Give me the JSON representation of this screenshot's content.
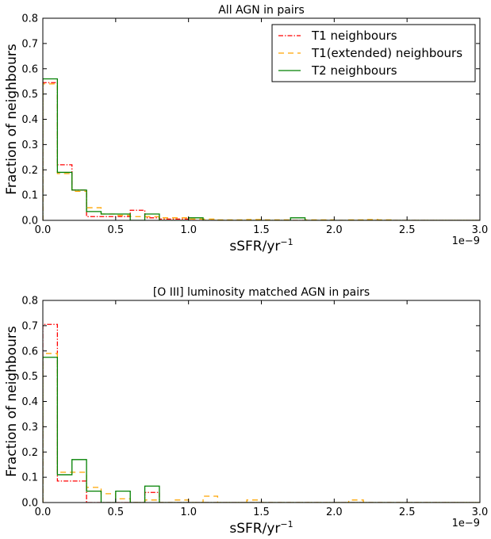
{
  "chart_data": [
    {
      "type": "histogram",
      "title": "All AGN in pairs",
      "xlabel": "sSFR/yr$^{-1}$",
      "ylabel": "Fraction of neighbours",
      "x_offset_label": "1e−9",
      "xlim": [
        0.0,
        3.0
      ],
      "ylim": [
        0.0,
        0.8
      ],
      "xticks": [
        "0.0",
        "0.5",
        "1.0",
        "1.5",
        "2.0",
        "2.5",
        "3.0"
      ],
      "yticks": [
        "0.0",
        "0.1",
        "0.2",
        "0.3",
        "0.4",
        "0.5",
        "0.6",
        "0.7",
        "0.8"
      ],
      "bin_width": 0.1,
      "bin_start": 0.0,
      "legend_position": "top-right",
      "grid": false,
      "series": [
        {
          "name": "T1 neighbours",
          "color": "#ff0000",
          "style": "dashdot",
          "values": [
            0.545,
            0.22,
            0.12,
            0.015,
            0.015,
            0.015,
            0.04,
            0.01,
            0.005,
            0.005,
            0.0,
            0.0,
            0.0,
            0.0,
            0.0,
            0.0,
            0.0,
            0.0,
            0.0,
            0.0,
            0.0,
            0.0,
            0.0,
            0.0,
            0.0,
            0.0,
            0.0,
            0.0,
            0.0,
            0.0
          ]
        },
        {
          "name": "T1(extended) neighbours",
          "color": "#ffa500",
          "style": "dashed",
          "values": [
            0.54,
            0.185,
            0.115,
            0.05,
            0.025,
            0.02,
            0.015,
            0.015,
            0.01,
            0.01,
            0.005,
            0.005,
            0.002,
            0.002,
            0.003,
            0.002,
            0.002,
            0.0,
            0.002,
            0.002,
            0.0,
            0.002,
            0.003,
            0.002,
            0.0,
            0.0,
            0.0,
            0.0,
            0.0,
            0.0
          ]
        },
        {
          "name": "T2 neighbours",
          "color": "#008000",
          "style": "solid",
          "values": [
            0.56,
            0.19,
            0.12,
            0.035,
            0.025,
            0.025,
            0.0,
            0.025,
            0.0,
            0.0,
            0.01,
            0.0,
            0.0,
            0.0,
            0.0,
            0.0,
            0.0,
            0.01,
            0.0,
            0.0,
            0.0,
            0.0,
            0.0,
            0.0,
            0.0,
            0.0,
            0.0,
            0.0,
            0.0,
            0.0
          ]
        }
      ]
    },
    {
      "type": "histogram",
      "title": "[O III] luminosity matched AGN in pairs",
      "xlabel": "sSFR/yr$^{-1}$",
      "ylabel": "Fraction of neighbours",
      "x_offset_label": "1e−9",
      "xlim": [
        0.0,
        3.0
      ],
      "ylim": [
        0.0,
        0.8
      ],
      "xticks": [
        "0.0",
        "0.5",
        "1.0",
        "1.5",
        "2.0",
        "2.5",
        "3.0"
      ],
      "yticks": [
        "0.0",
        "0.1",
        "0.2",
        "0.3",
        "0.4",
        "0.5",
        "0.6",
        "0.7",
        "0.8"
      ],
      "bin_width": 0.1,
      "bin_start": 0.0,
      "grid": false,
      "series": [
        {
          "name": "T1 neighbours",
          "color": "#ff0000",
          "style": "dashdot",
          "values": [
            0.705,
            0.085,
            0.085,
            0.0,
            0.0,
            0.0,
            0.0,
            0.04,
            0.0,
            0.0,
            0.0,
            0.0,
            0.0,
            0.0,
            0.0,
            0.0,
            0.0,
            0.0,
            0.0,
            0.0,
            0.0,
            0.0,
            0.0,
            0.0,
            0.0,
            0.0,
            0.0,
            0.0,
            0.0,
            0.0
          ]
        },
        {
          "name": "T1(extended) neighbours",
          "color": "#ffa500",
          "style": "dashed",
          "values": [
            0.59,
            0.12,
            0.12,
            0.06,
            0.035,
            0.015,
            0.0,
            0.01,
            0.0,
            0.01,
            0.0,
            0.025,
            0.0,
            0.0,
            0.01,
            0.0,
            0.0,
            0.0,
            0.0,
            0.0,
            0.0,
            0.01,
            0.0,
            0.0,
            0.0,
            0.0,
            0.0,
            0.0,
            0.0,
            0.0
          ]
        },
        {
          "name": "T2 neighbours",
          "color": "#008000",
          "style": "solid",
          "values": [
            0.575,
            0.11,
            0.17,
            0.045,
            0.0,
            0.045,
            0.0,
            0.065,
            0.0,
            0.0,
            0.0,
            0.0,
            0.0,
            0.0,
            0.0,
            0.0,
            0.0,
            0.0,
            0.0,
            0.0,
            0.0,
            0.0,
            0.0,
            0.0,
            0.0,
            0.0,
            0.0,
            0.0,
            0.0,
            0.0
          ]
        }
      ]
    }
  ]
}
